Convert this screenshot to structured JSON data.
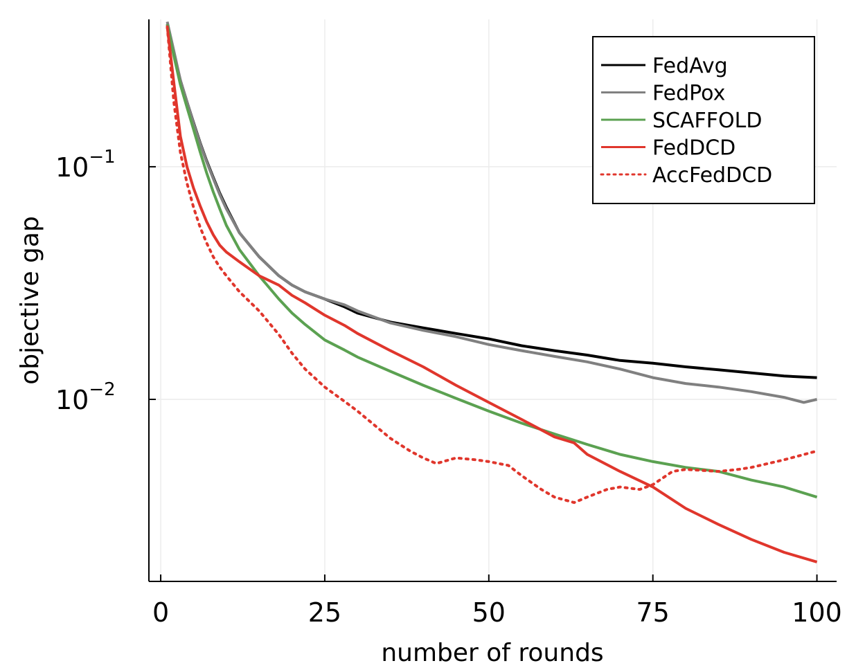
{
  "chart_data": {
    "type": "line",
    "xlabel": "number of rounds",
    "ylabel": "objective gap",
    "yscale": "log",
    "xlim": [
      -1.8,
      103
    ],
    "ylim": [
      0.00165,
      0.43
    ],
    "xticks": [
      0,
      25,
      50,
      75,
      100
    ],
    "xtick_labels": [
      "0",
      "25",
      "50",
      "75",
      "100"
    ],
    "yticks": [
      0.01,
      0.1
    ],
    "ytick_labels": [
      {
        "base": "10",
        "exp": "−2"
      },
      {
        "base": "10",
        "exp": "−1"
      }
    ],
    "grid": true,
    "legend_position": "top-right",
    "series": [
      {
        "name": "FedAvg",
        "color": "#000000",
        "style": "solid",
        "points": [
          [
            1,
            0.41
          ],
          [
            2,
            0.31
          ],
          [
            3,
            0.235
          ],
          [
            4,
            0.19
          ],
          [
            5,
            0.155
          ],
          [
            6,
            0.127
          ],
          [
            7,
            0.106
          ],
          [
            8,
            0.09
          ],
          [
            9,
            0.077
          ],
          [
            10,
            0.067
          ],
          [
            12,
            0.052
          ],
          [
            15,
            0.041
          ],
          [
            18,
            0.034
          ],
          [
            20,
            0.031
          ],
          [
            22,
            0.029
          ],
          [
            25,
            0.027
          ],
          [
            28,
            0.025
          ],
          [
            30,
            0.0235
          ],
          [
            35,
            0.0215
          ],
          [
            40,
            0.0203
          ],
          [
            45,
            0.0192
          ],
          [
            50,
            0.0182
          ],
          [
            55,
            0.017
          ],
          [
            60,
            0.0162
          ],
          [
            65,
            0.0155
          ],
          [
            70,
            0.0147
          ],
          [
            75,
            0.0143
          ],
          [
            80,
            0.0138
          ],
          [
            85,
            0.0134
          ],
          [
            90,
            0.013
          ],
          [
            95,
            0.0126
          ],
          [
            100,
            0.0124
          ]
        ]
      },
      {
        "name": "FedPox",
        "color": "#808080",
        "style": "solid",
        "points": [
          [
            1,
            0.42
          ],
          [
            2,
            0.315
          ],
          [
            3,
            0.235
          ],
          [
            4,
            0.19
          ],
          [
            5,
            0.154
          ],
          [
            6,
            0.126
          ],
          [
            7,
            0.105
          ],
          [
            8,
            0.089
          ],
          [
            9,
            0.076
          ],
          [
            10,
            0.066
          ],
          [
            12,
            0.052
          ],
          [
            15,
            0.041
          ],
          [
            18,
            0.034
          ],
          [
            20,
            0.031
          ],
          [
            22,
            0.029
          ],
          [
            25,
            0.027
          ],
          [
            28,
            0.0255
          ],
          [
            30,
            0.024
          ],
          [
            35,
            0.0213
          ],
          [
            40,
            0.0198
          ],
          [
            45,
            0.0186
          ],
          [
            50,
            0.0172
          ],
          [
            55,
            0.0162
          ],
          [
            60,
            0.0153
          ],
          [
            65,
            0.0145
          ],
          [
            70,
            0.0135
          ],
          [
            75,
            0.0124
          ],
          [
            80,
            0.0117
          ],
          [
            85,
            0.0113
          ],
          [
            90,
            0.0108
          ],
          [
            95,
            0.0102
          ],
          [
            98,
            0.0097
          ],
          [
            100,
            0.01
          ]
        ]
      },
      {
        "name": "SCAFFOLD",
        "color": "#5ba151",
        "style": "solid",
        "points": [
          [
            1,
            0.41
          ],
          [
            2,
            0.3
          ],
          [
            3,
            0.225
          ],
          [
            4,
            0.18
          ],
          [
            5,
            0.145
          ],
          [
            6,
            0.116
          ],
          [
            7,
            0.094
          ],
          [
            8,
            0.078
          ],
          [
            9,
            0.066
          ],
          [
            10,
            0.056
          ],
          [
            12,
            0.044
          ],
          [
            15,
            0.034
          ],
          [
            18,
            0.027
          ],
          [
            20,
            0.0235
          ],
          [
            22,
            0.021
          ],
          [
            25,
            0.018
          ],
          [
            28,
            0.0163
          ],
          [
            30,
            0.0152
          ],
          [
            35,
            0.0132
          ],
          [
            40,
            0.0115
          ],
          [
            45,
            0.0101
          ],
          [
            50,
            0.0089
          ],
          [
            55,
            0.0079
          ],
          [
            60,
            0.0071
          ],
          [
            65,
            0.0064
          ],
          [
            70,
            0.0058
          ],
          [
            75,
            0.0054
          ],
          [
            80,
            0.0051
          ],
          [
            85,
            0.0049
          ],
          [
            90,
            0.0045
          ],
          [
            95,
            0.0042
          ],
          [
            100,
            0.0038
          ]
        ]
      },
      {
        "name": "FedDCD",
        "color": "#e0362c",
        "style": "solid",
        "points": [
          [
            1,
            0.4
          ],
          [
            2,
            0.23
          ],
          [
            3,
            0.135
          ],
          [
            4,
            0.1
          ],
          [
            5,
            0.081
          ],
          [
            6,
            0.068
          ],
          [
            7,
            0.058
          ],
          [
            8,
            0.051
          ],
          [
            9,
            0.046
          ],
          [
            10,
            0.043
          ],
          [
            12,
            0.039
          ],
          [
            15,
            0.034
          ],
          [
            18,
            0.031
          ],
          [
            20,
            0.028
          ],
          [
            22,
            0.026
          ],
          [
            25,
            0.023
          ],
          [
            28,
            0.0208
          ],
          [
            30,
            0.0192
          ],
          [
            35,
            0.0162
          ],
          [
            40,
            0.0138
          ],
          [
            45,
            0.0115
          ],
          [
            50,
            0.0097
          ],
          [
            55,
            0.0082
          ],
          [
            60,
            0.0069
          ],
          [
            63,
            0.0065
          ],
          [
            65,
            0.0058
          ],
          [
            70,
            0.0049
          ],
          [
            75,
            0.0042
          ],
          [
            80,
            0.0034
          ],
          [
            85,
            0.0029
          ],
          [
            90,
            0.0025
          ],
          [
            95,
            0.0022
          ],
          [
            100,
            0.002
          ]
        ]
      },
      {
        "name": "AccFedDCD",
        "color": "#e0362c",
        "style": "dotted",
        "points": [
          [
            1,
            0.4
          ],
          [
            2,
            0.19
          ],
          [
            3,
            0.115
          ],
          [
            4,
            0.085
          ],
          [
            5,
            0.067
          ],
          [
            6,
            0.055
          ],
          [
            7,
            0.047
          ],
          [
            8,
            0.041
          ],
          [
            9,
            0.037
          ],
          [
            10,
            0.034
          ],
          [
            12,
            0.029
          ],
          [
            15,
            0.024
          ],
          [
            18,
            0.019
          ],
          [
            20,
            0.0158
          ],
          [
            22,
            0.0135
          ],
          [
            25,
            0.0113
          ],
          [
            28,
            0.0098
          ],
          [
            30,
            0.0089
          ],
          [
            35,
            0.0068
          ],
          [
            38,
            0.006
          ],
          [
            40,
            0.0056
          ],
          [
            42,
            0.0053
          ],
          [
            45,
            0.0056
          ],
          [
            48,
            0.0055
          ],
          [
            50,
            0.0054
          ],
          [
            53,
            0.0052
          ],
          [
            55,
            0.0047
          ],
          [
            58,
            0.0041
          ],
          [
            60,
            0.0038
          ],
          [
            63,
            0.0036
          ],
          [
            65,
            0.0038
          ],
          [
            68,
            0.0041
          ],
          [
            70,
            0.0042
          ],
          [
            73,
            0.0041
          ],
          [
            75,
            0.0043
          ],
          [
            78,
            0.0049
          ],
          [
            80,
            0.005
          ],
          [
            85,
            0.0049
          ],
          [
            88,
            0.005
          ],
          [
            90,
            0.0051
          ],
          [
            95,
            0.0055
          ],
          [
            100,
            0.006
          ]
        ]
      }
    ]
  }
}
